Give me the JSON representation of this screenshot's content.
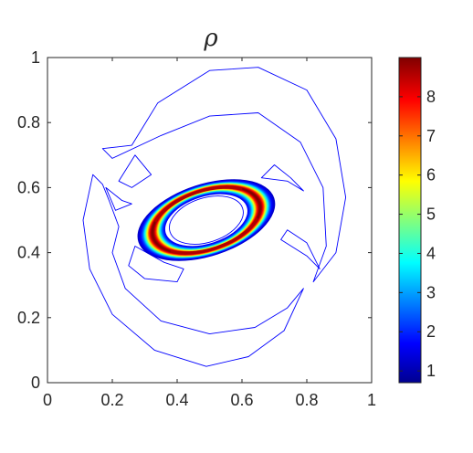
{
  "chart_data": {
    "type": "contour",
    "title": "ρ",
    "xlabel": "",
    "ylabel": "",
    "xlim": [
      0,
      1
    ],
    "ylim": [
      0,
      1
    ],
    "x_ticks": [
      "0",
      "0.2",
      "0.4",
      "0.6",
      "0.8",
      "1"
    ],
    "y_ticks": [
      "0",
      "0.2",
      "0.4",
      "0.6",
      "0.8",
      "1"
    ],
    "grid": false,
    "colorbar": {
      "range": [
        0.7,
        9.0
      ],
      "ticks": [
        "1",
        "2",
        "3",
        "4",
        "5",
        "6",
        "7",
        "8"
      ],
      "colormap": "jet",
      "placement": "right"
    },
    "features": {
      "ring_center": [
        0.49,
        0.5
      ],
      "ring_semi_axis_x": 0.19,
      "ring_semi_axis_y": 0.1,
      "ring_tilt_deg": 18,
      "peak_value": 9.0,
      "background_value": 1.0,
      "outer_contour_level": 1.1
    },
    "colors": {
      "low": "#00008f",
      "mid": "#00ffff",
      "high": "#800000",
      "outline": "#0000ff"
    }
  }
}
